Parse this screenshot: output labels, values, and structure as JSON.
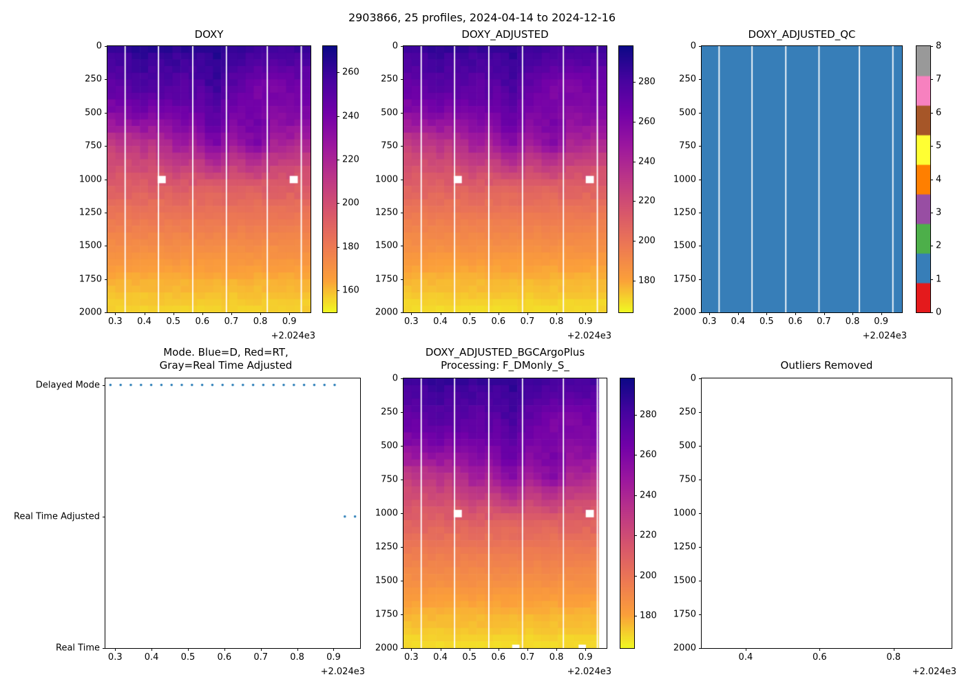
{
  "suptitle": "2903866, 25 profiles, 2024-04-14 to 2024-12-16",
  "colors": {
    "axis": "#000000",
    "dot_blue": "#1f77b4",
    "qc_fill": "#377eb8",
    "gap_line": "#ffffff",
    "plasma_low_to_high": [
      "#f0f921",
      "#fb9f3a",
      "#ed7953",
      "#d8576b",
      "#bd3786",
      "#9c179e",
      "#7201a8",
      "#46039f",
      "#0d0887"
    ],
    "qc_palette": [
      "#e41a1c",
      "#377eb8",
      "#4daf4a",
      "#984ea3",
      "#ff7f00",
      "#ffff33",
      "#a65628",
      "#f781bf",
      "#999999"
    ]
  },
  "chart_data": [
    {
      "id": "doxy",
      "type": "heatmap",
      "title": "DOXY",
      "x_range": [
        2024.273,
        2024.973
      ],
      "y_range": [
        0,
        2000
      ],
      "x_ticks": [
        2024.3,
        2024.4,
        2024.5,
        2024.6,
        2024.7,
        2024.8,
        2024.9
      ],
      "x_tick_labels": [
        "0.3",
        "0.4",
        "0.5",
        "0.6",
        "0.7",
        "0.8",
        "0.9"
      ],
      "x_offset_label": "+2.024e3",
      "y_ticks": [
        0,
        250,
        500,
        750,
        1000,
        1250,
        1500,
        1750,
        2000
      ],
      "y_tick_labels": [
        "0",
        "250",
        "500",
        "750",
        "1000",
        "1250",
        "1500",
        "1750",
        "2000"
      ],
      "n_profiles": 25,
      "n_depth_bins": 40,
      "vmin": 150,
      "vmax": 272,
      "colorbar_ticks": [
        160,
        180,
        200,
        220,
        240,
        260
      ],
      "depth_profile": [
        262,
        259,
        257,
        254,
        252,
        250,
        248,
        246,
        244,
        242,
        239,
        236,
        232,
        228,
        224,
        219,
        214,
        209,
        204,
        200,
        196,
        193,
        190,
        187,
        184,
        182,
        180,
        178,
        176,
        174,
        172,
        170,
        168,
        166,
        164,
        162,
        161,
        159,
        158,
        157
      ],
      "shallow_offsets": [
        -3,
        -1,
        2,
        4,
        6,
        4,
        3,
        5,
        3,
        2,
        5,
        3,
        9,
        11,
        4,
        1,
        -2,
        -6,
        -9,
        -8,
        -10,
        -9,
        -8,
        -7,
        -6
      ],
      "mid_offsets": [
        -14,
        -12,
        -13,
        -10,
        -8,
        -11,
        -9,
        -6,
        2,
        4,
        1,
        3,
        12,
        16,
        8,
        2,
        5,
        10,
        14,
        6,
        -2,
        -4,
        -3,
        -5,
        -4
      ],
      "noise_amp": 3,
      "gap_dates": [
        2024.334,
        2024.449,
        2024.567,
        2024.683,
        2024.824,
        2024.941
      ],
      "missing_cell_dates": [
        2024.46,
        2024.915
      ],
      "missing_cell_depths": [
        975,
        1030
      ]
    },
    {
      "id": "doxy_adjusted",
      "type": "heatmap",
      "title": "DOXY_ADJUSTED",
      "x_range": [
        2024.273,
        2024.973
      ],
      "y_range": [
        0,
        2000
      ],
      "x_ticks": [
        2024.3,
        2024.4,
        2024.5,
        2024.6,
        2024.7,
        2024.8,
        2024.9
      ],
      "x_tick_labels": [
        "0.3",
        "0.4",
        "0.5",
        "0.6",
        "0.7",
        "0.8",
        "0.9"
      ],
      "x_offset_label": "+2.024e3",
      "y_ticks": [
        0,
        250,
        500,
        750,
        1000,
        1250,
        1500,
        1750,
        2000
      ],
      "y_tick_labels": [
        "0",
        "250",
        "500",
        "750",
        "1000",
        "1250",
        "1500",
        "1750",
        "2000"
      ],
      "n_profiles": 25,
      "n_depth_bins": 40,
      "vmin": 164,
      "vmax": 298,
      "colorbar_ticks": [
        180,
        200,
        220,
        240,
        260,
        280
      ],
      "depth_profile": [
        284,
        281,
        279,
        276,
        273,
        271,
        269,
        267,
        265,
        263,
        259,
        256,
        252,
        247,
        243,
        238,
        232,
        227,
        221,
        217,
        213,
        209,
        206,
        203,
        200,
        197,
        195,
        193,
        191,
        189,
        187,
        184,
        182,
        180,
        178,
        176,
        175,
        173,
        171,
        170
      ],
      "shallow_offsets": [
        -3,
        -1,
        2,
        4,
        6,
        4,
        3,
        5,
        3,
        2,
        5,
        3,
        9,
        11,
        4,
        1,
        -2,
        -6,
        -9,
        -8,
        -10,
        -9,
        -8,
        -7,
        -6
      ],
      "mid_offsets": [
        -14,
        -12,
        -13,
        -10,
        -8,
        -11,
        -9,
        -6,
        2,
        4,
        1,
        3,
        12,
        16,
        8,
        2,
        5,
        10,
        14,
        6,
        -2,
        -4,
        -3,
        -5,
        -4
      ],
      "noise_amp": 3,
      "gap_dates": [
        2024.334,
        2024.449,
        2024.567,
        2024.683,
        2024.824,
        2024.941
      ],
      "missing_cell_dates": [
        2024.46,
        2024.915
      ],
      "missing_cell_depths": [
        975,
        1030
      ]
    },
    {
      "id": "doxy_adjusted_qc",
      "type": "qc_heatmap",
      "title": "DOXY_ADJUSTED_QC",
      "x_range": [
        2024.273,
        2024.973
      ],
      "y_range": [
        0,
        2000
      ],
      "x_ticks": [
        2024.3,
        2024.4,
        2024.5,
        2024.6,
        2024.7,
        2024.8,
        2024.9
      ],
      "x_tick_labels": [
        "0.3",
        "0.4",
        "0.5",
        "0.6",
        "0.7",
        "0.8",
        "0.9"
      ],
      "x_offset_label": "+2.024e3",
      "y_ticks": [
        0,
        250,
        500,
        750,
        1000,
        1250,
        1500,
        1750,
        2000
      ],
      "y_tick_labels": [
        "0",
        "250",
        "500",
        "750",
        "1000",
        "1250",
        "1500",
        "1750",
        "2000"
      ],
      "qc_value": 1,
      "qc_range": [
        0,
        8
      ],
      "colorbar_ticks": [
        0,
        1,
        2,
        3,
        4,
        5,
        6,
        7,
        8
      ],
      "gap_dates": [
        2024.334,
        2024.449,
        2024.567,
        2024.683,
        2024.824,
        2024.941
      ]
    },
    {
      "id": "mode",
      "type": "scatter",
      "title_line1": "Mode. Blue=D, Red=RT,",
      "title_line2": "Gray=Real Time Adjusted",
      "x_range": [
        2024.273,
        2024.973
      ],
      "x_ticks": [
        2024.3,
        2024.4,
        2024.5,
        2024.6,
        2024.7,
        2024.8,
        2024.9
      ],
      "x_tick_labels": [
        "0.3",
        "0.4",
        "0.5",
        "0.6",
        "0.7",
        "0.8",
        "0.9"
      ],
      "x_offset_label": "+2.024e3",
      "y_categories": [
        "Delayed Mode",
        "Real Time Adjusted",
        "Real Time"
      ],
      "y_values": [
        2,
        1,
        0
      ],
      "y_max": 2.05,
      "delayed_mode_dates": [
        2024.287,
        2024.315,
        2024.343,
        2024.371,
        2024.399,
        2024.427,
        2024.455,
        2024.483,
        2024.511,
        2024.539,
        2024.567,
        2024.595,
        2024.623,
        2024.651,
        2024.679,
        2024.707,
        2024.735,
        2024.763,
        2024.791,
        2024.819,
        2024.847,
        2024.875,
        2024.903
      ],
      "real_time_adjusted_dates": [
        2024.931,
        2024.959
      ],
      "real_time_dates": []
    },
    {
      "id": "doxy_adjusted_bgc",
      "type": "heatmap",
      "title_line1": "DOXY_ADJUSTED_BGCArgoPlus",
      "title_line2": "Processing: F_DMonly_S_",
      "x_range": [
        2024.273,
        2024.973
      ],
      "y_range": [
        0,
        2000
      ],
      "x_ticks": [
        2024.3,
        2024.4,
        2024.5,
        2024.6,
        2024.7,
        2024.8,
        2024.9
      ],
      "x_tick_labels": [
        "0.3",
        "0.4",
        "0.5",
        "0.6",
        "0.7",
        "0.8",
        "0.9"
      ],
      "x_offset_label": "+2.024e3",
      "y_ticks": [
        0,
        250,
        500,
        750,
        1000,
        1250,
        1500,
        1750,
        2000
      ],
      "y_tick_labels": [
        "0",
        "250",
        "500",
        "750",
        "1000",
        "1250",
        "1500",
        "1750",
        "2000"
      ],
      "n_profiles": 25,
      "n_depth_bins": 40,
      "vmin": 164,
      "vmax": 298,
      "colorbar_ticks": [
        180,
        200,
        220,
        240,
        260,
        280
      ],
      "depth_profile": [
        284,
        281,
        279,
        276,
        273,
        271,
        269,
        267,
        265,
        263,
        259,
        256,
        252,
        247,
        243,
        238,
        232,
        227,
        221,
        217,
        213,
        209,
        206,
        203,
        200,
        197,
        195,
        193,
        191,
        189,
        187,
        184,
        182,
        180,
        178,
        176,
        175,
        173,
        171,
        170
      ],
      "shallow_offsets": [
        -3,
        -1,
        2,
        4,
        6,
        4,
        3,
        5,
        3,
        2,
        5,
        3,
        9,
        11,
        4,
        1,
        -2,
        -6,
        -9,
        -8,
        -10,
        -9,
        -8,
        -7,
        -6
      ],
      "mid_offsets": [
        -14,
        -12,
        -13,
        -10,
        -8,
        -11,
        -9,
        -6,
        2,
        4,
        1,
        3,
        12,
        16,
        8,
        2,
        5,
        10,
        14,
        6,
        -2,
        -4,
        -3,
        -5,
        -4
      ],
      "noise_amp": 3,
      "gap_dates": [
        2024.334,
        2024.449,
        2024.567,
        2024.683,
        2024.824,
        2024.941
      ],
      "missing_cell_dates": [
        2024.46,
        2024.915
      ],
      "missing_cell_depths": [
        975,
        1030
      ],
      "missing_columns": [
        24
      ],
      "bottom_notch_dates": [
        2024.66,
        2024.889
      ]
    },
    {
      "id": "outliers",
      "type": "empty",
      "title": "Outliers Removed",
      "x_range": [
        2024.281,
        2024.957
      ],
      "y_range": [
        0,
        2000
      ],
      "x_ticks": [
        2024.4,
        2024.6,
        2024.8
      ],
      "x_tick_labels": [
        "0.4",
        "0.6",
        "0.8"
      ],
      "x_offset_label": "+2.024e3",
      "y_ticks": [
        0,
        250,
        500,
        750,
        1000,
        1250,
        1500,
        1750,
        2000
      ],
      "y_tick_labels": [
        "0",
        "250",
        "500",
        "750",
        "1000",
        "1250",
        "1500",
        "1750",
        "2000"
      ]
    }
  ]
}
